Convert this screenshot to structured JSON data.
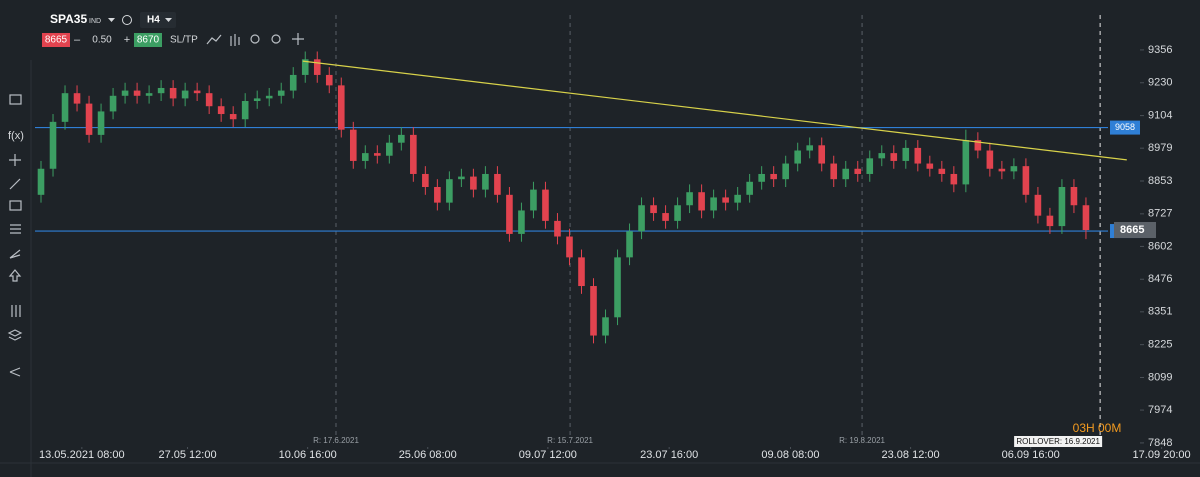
{
  "toolbar": {
    "symbol": "SPA35",
    "market": "IND",
    "timeframe": "H4",
    "sell": "8665",
    "minus": "–",
    "lot": "0.50",
    "plus": "+",
    "buy": "8670",
    "sltp": "SL/TP"
  },
  "countdown": "03H 00M",
  "chart_data": {
    "type": "candlestick",
    "x": [
      0,
      1,
      2,
      3,
      4,
      5,
      6,
      7,
      8,
      9,
      10,
      11,
      12,
      13,
      14,
      15,
      16,
      17,
      18,
      19,
      20,
      21,
      22,
      23,
      24,
      25,
      26,
      27,
      28,
      29,
      30,
      31,
      32,
      33,
      34,
      35,
      36,
      37,
      38,
      39,
      40,
      41,
      42,
      43,
      44,
      45,
      46,
      47,
      48,
      49,
      50,
      51,
      52,
      53,
      54,
      55,
      56,
      57,
      58,
      59,
      60,
      61,
      62,
      63,
      64,
      65,
      66,
      67,
      68,
      69,
      70,
      71,
      72,
      73,
      74,
      75,
      76,
      77,
      78,
      79,
      80,
      81,
      82,
      83,
      84,
      85,
      86,
      87
    ],
    "open": [
      8800,
      8900,
      9080,
      9190,
      9150,
      9030,
      9120,
      9180,
      9200,
      9180,
      9190,
      9210,
      9170,
      9200,
      9190,
      9140,
      9110,
      9090,
      9160,
      9170,
      9180,
      9200,
      9260,
      9320,
      9260,
      9220,
      9050,
      8930,
      8960,
      8950,
      9000,
      9030,
      8880,
      8830,
      8770,
      8860,
      8870,
      8820,
      8880,
      8800,
      8650,
      8740,
      8820,
      8700,
      8640,
      8560,
      8450,
      8260,
      8330,
      8560,
      8660,
      8760,
      8730,
      8700,
      8760,
      8810,
      8740,
      8790,
      8770,
      8800,
      8850,
      8880,
      8860,
      8920,
      8970,
      8990,
      8920,
      8860,
      8900,
      8880,
      8940,
      8960,
      8930,
      8980,
      8920,
      8900,
      8880,
      8840,
      9010,
      8970,
      8900,
      8890,
      8910,
      8800,
      8720,
      8680,
      8830,
      8760
    ],
    "high": [
      8930,
      9110,
      9220,
      9220,
      9180,
      9150,
      9210,
      9230,
      9230,
      9220,
      9240,
      9240,
      9230,
      9230,
      9220,
      9170,
      9140,
      9190,
      9200,
      9210,
      9230,
      9290,
      9350,
      9350,
      9290,
      9250,
      9080,
      8990,
      8990,
      9030,
      9060,
      9060,
      8910,
      8860,
      8890,
      8900,
      8900,
      8910,
      8910,
      8830,
      8770,
      8850,
      8850,
      8730,
      8670,
      8590,
      8480,
      8360,
      8590,
      8690,
      8790,
      8790,
      8760,
      8790,
      8840,
      8840,
      8820,
      8820,
      8830,
      8880,
      8910,
      8910,
      8950,
      9000,
      9020,
      9020,
      8950,
      8930,
      8930,
      8970,
      8990,
      8990,
      9010,
      9010,
      8950,
      8930,
      8910,
      9050,
      9040,
      9000,
      8930,
      8940,
      8940,
      8830,
      8750,
      8860,
      8860,
      8790
    ],
    "low": [
      8770,
      8870,
      9050,
      9120,
      9000,
      9000,
      9090,
      9150,
      9150,
      9150,
      9160,
      9140,
      9140,
      9160,
      9110,
      9080,
      9060,
      9060,
      9130,
      9140,
      9150,
      9170,
      9230,
      9230,
      9190,
      9020,
      8900,
      8900,
      8920,
      8920,
      8970,
      8850,
      8800,
      8740,
      8740,
      8830,
      8790,
      8790,
      8770,
      8620,
      8620,
      8710,
      8670,
      8610,
      8530,
      8420,
      8230,
      8230,
      8300,
      8530,
      8630,
      8700,
      8670,
      8670,
      8730,
      8710,
      8710,
      8740,
      8740,
      8770,
      8820,
      8830,
      8830,
      8890,
      8940,
      8890,
      8830,
      8830,
      8850,
      8850,
      8910,
      8900,
      8900,
      8890,
      8870,
      8850,
      8810,
      8810,
      8940,
      8870,
      8860,
      8860,
      8770,
      8690,
      8650,
      8650,
      8730,
      8630
    ],
    "close": [
      8900,
      9080,
      9190,
      9150,
      9030,
      9120,
      9180,
      9200,
      9180,
      9190,
      9210,
      9170,
      9200,
      9190,
      9140,
      9110,
      9090,
      9160,
      9170,
      9180,
      9200,
      9260,
      9320,
      9260,
      9220,
      9050,
      8930,
      8960,
      8950,
      9000,
      9030,
      8880,
      8830,
      8770,
      8860,
      8870,
      8820,
      8880,
      8800,
      8650,
      8740,
      8820,
      8700,
      8640,
      8560,
      8450,
      8260,
      8330,
      8560,
      8660,
      8760,
      8730,
      8700,
      8760,
      8810,
      8740,
      8790,
      8770,
      8800,
      8850,
      8880,
      8860,
      8920,
      8970,
      8990,
      8920,
      8860,
      8900,
      8880,
      8940,
      8960,
      8930,
      8980,
      8920,
      8900,
      8880,
      8840,
      9010,
      8970,
      8900,
      8890,
      8910,
      8800,
      8720,
      8680,
      8830,
      8760,
      8665
    ],
    "up_color": "#3c9e63",
    "down_color": "#e2434f",
    "xlim": [
      -0.5,
      91.5
    ],
    "ylim": [
      7840,
      9490
    ],
    "xticks": [
      {
        "value": 3.4,
        "label": "13.05.2021 08:00"
      },
      {
        "value": 12.2,
        "label": "27.05 12:00"
      },
      {
        "value": 22.2,
        "label": "10.06 16:00"
      },
      {
        "value": 32.2,
        "label": "25.06 08:00"
      },
      {
        "value": 42.2,
        "label": "09.07 12:00"
      },
      {
        "value": 52.3,
        "label": "23.07 16:00"
      },
      {
        "value": 62.4,
        "label": "09.08 08:00"
      },
      {
        "value": 72.4,
        "label": "23.08 12:00"
      },
      {
        "value": 82.4,
        "label": "06.09 16:00"
      },
      {
        "value": 93.3,
        "label": "17.09 20:00"
      }
    ],
    "yticks": [
      9356,
      9230,
      9104,
      8979,
      8853,
      8727,
      8602,
      8476,
      8351,
      8225,
      8099,
      7974,
      7848
    ],
    "hlines": [
      {
        "value": 9058,
        "color": "#2f7fd6"
      },
      {
        "value": 8661,
        "color": "#2f7fd6"
      }
    ],
    "current_price": 8665,
    "trendline": {
      "x": [
        21.8,
        90.4
      ],
      "y": [
        9313,
        8934
      ],
      "color": "#d8d24a"
    },
    "markers": [
      {
        "x": 24.56,
        "label": "R: 17.6.2021"
      },
      {
        "x": 44.05,
        "label": "R: 15.7.2021"
      },
      {
        "x": 68.36,
        "label": "R: 19.8.2021"
      }
    ],
    "rollover": {
      "x": 88.18,
      "label": "ROLLOVER: 16.9.2021"
    }
  }
}
